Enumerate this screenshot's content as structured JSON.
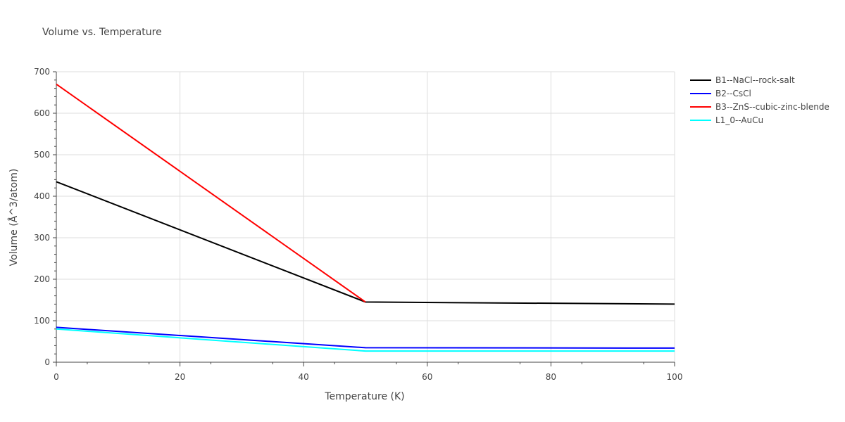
{
  "chart_data": {
    "type": "line",
    "title": "Volume vs. Temperature",
    "xlabel": "Temperature (K)",
    "ylabel": "Volume (Å^3/atom)",
    "xlim": [
      0,
      100
    ],
    "ylim": [
      0,
      700
    ],
    "x_ticks": [
      0,
      20,
      40,
      60,
      80,
      100
    ],
    "y_ticks": [
      0,
      100,
      200,
      300,
      400,
      500,
      600,
      700
    ],
    "grid": true,
    "legend_position": "right",
    "series": [
      {
        "name": "B1--NaCl--rock-salt",
        "color": "#000000",
        "x": [
          0,
          50,
          100
        ],
        "y": [
          435,
          145,
          140
        ]
      },
      {
        "name": "B2--CsCl",
        "color": "#0000ff",
        "x": [
          0,
          50,
          100
        ],
        "y": [
          84,
          35,
          34
        ]
      },
      {
        "name": "B3--ZnS--cubic-zinc-blende",
        "color": "#ff0000",
        "x": [
          0,
          50
        ],
        "y": [
          670,
          145
        ]
      },
      {
        "name": "L1_0--AuCu",
        "color": "#00ffff",
        "x": [
          0,
          50,
          100
        ],
        "y": [
          80,
          27,
          27
        ]
      }
    ]
  }
}
